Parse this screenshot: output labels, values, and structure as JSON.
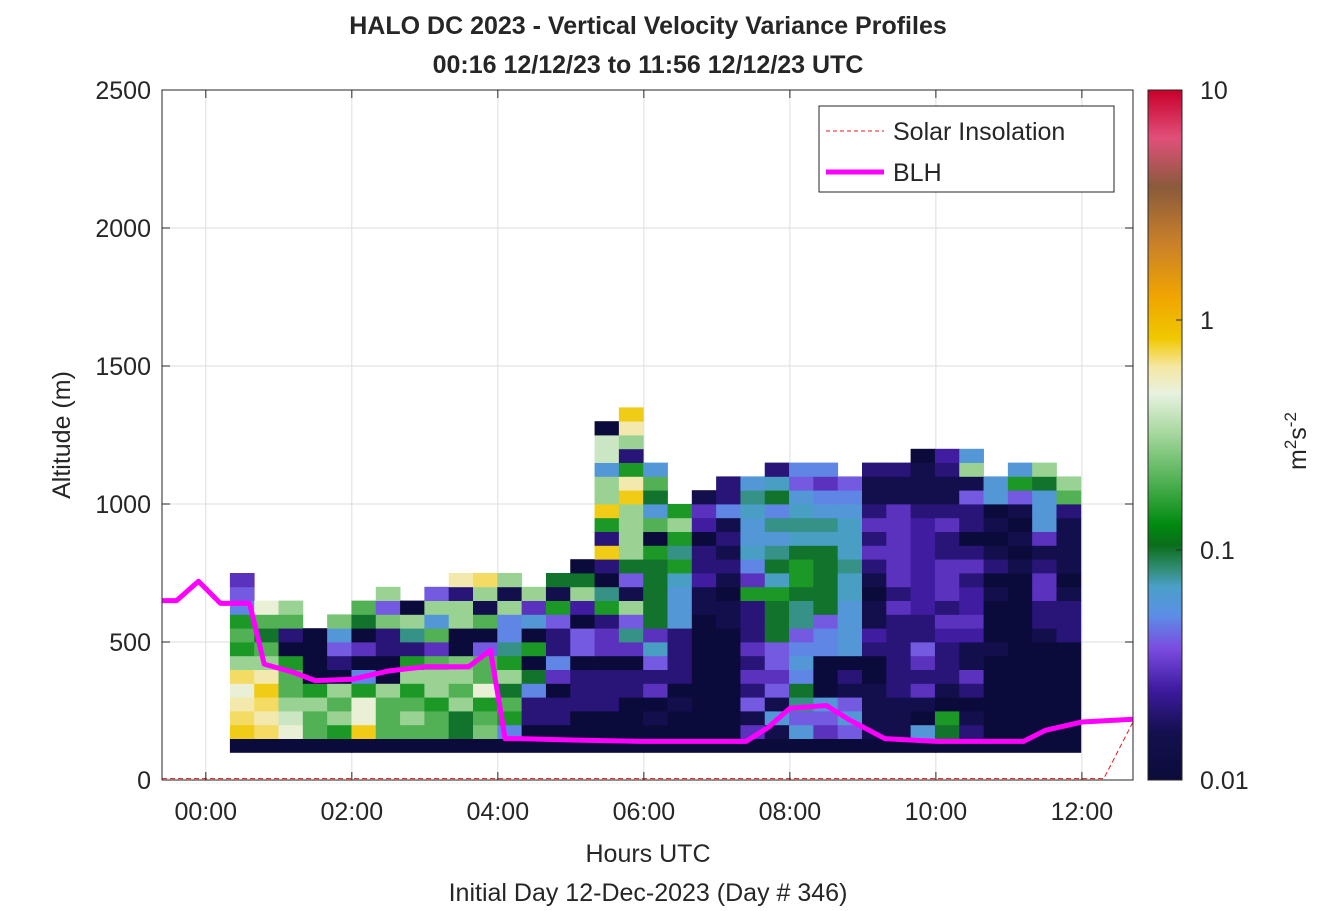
{
  "chart_data": {
    "type": "heatmap",
    "title": "HALO DC 2023 - Vertical Velocity Variance Profiles",
    "subtitle": "00:16 12/12/23 to 11:56 12/12/23  UTC",
    "xlabel": "Hours UTC",
    "ylabel": "Altitude (m)",
    "caption": "Initial Day 12-Dec-2023 (Day # 346)",
    "x_unit": "hours UTC",
    "xlim": [
      -0.6,
      12.7
    ],
    "ylim": [
      0,
      2500
    ],
    "x_ticks": [
      0,
      2,
      4,
      6,
      8,
      10,
      12
    ],
    "x_tick_labels": [
      "00:00",
      "02:00",
      "04:00",
      "06:00",
      "08:00",
      "10:00",
      "12:00"
    ],
    "y_ticks": [
      0,
      500,
      1000,
      1500,
      2000,
      2500
    ],
    "y_tick_labels": [
      "0",
      "500",
      "1000",
      "1500",
      "2000",
      "2500"
    ],
    "grid": true,
    "legend_position": "top-right",
    "colorbar": {
      "label_base": "m",
      "label_sup1": "2",
      "label_mid": "s",
      "label_sup2": "-2",
      "scale": "log",
      "range": [
        0.01,
        10
      ],
      "ticks": [
        0.01,
        0.1,
        1,
        10
      ],
      "tick_labels": [
        "0.01",
        "0.1",
        "1",
        "10"
      ]
    },
    "heatmap": {
      "x_start": 0.33,
      "x_step": 0.333,
      "y_start": 100,
      "y_step": 50,
      "columns": [
        [
          0.01,
          0.8,
          0.7,
          0.6,
          0.5,
          0.7,
          0.3,
          0.15,
          0.2,
          0.15,
          0.05,
          0.04,
          0.03
        ],
        [
          0.01,
          0.7,
          0.6,
          0.7,
          0.8,
          0.6,
          0.3,
          0.2,
          0.1,
          0.2,
          0.5
        ],
        [
          0.01,
          0.5,
          0.4,
          0.3,
          0.2,
          0.2,
          0.15,
          0.01,
          0.02,
          0.2,
          0.3
        ],
        [
          0.01,
          0.2,
          0.2,
          0.3,
          0.15,
          0.01,
          0.01,
          0.01,
          0.01
        ],
        [
          0.01,
          0.15,
          0.3,
          0.2,
          0.3,
          0.01,
          0.02,
          0.04,
          0.06,
          0.25
        ],
        [
          0.01,
          0.8,
          0.5,
          0.5,
          0.15,
          0.05,
          0.01,
          0.03,
          0.01,
          0.1,
          0.2
        ],
        [
          0.01,
          0.2,
          0.2,
          0.2,
          0.3,
          0.01,
          0.01,
          0.02,
          0.02,
          0.25,
          0.04,
          0.3
        ],
        [
          0.01,
          0.2,
          0.3,
          0.2,
          0.15,
          0.3,
          0.15,
          0.02,
          0.08,
          0.3,
          0.01
        ],
        [
          0.01,
          0.2,
          0.2,
          0.15,
          0.3,
          0.3,
          0.2,
          0.03,
          0.2,
          0.06,
          0.3,
          0.04
        ],
        [
          0.01,
          0.1,
          0.1,
          0.3,
          0.2,
          0.3,
          0.25,
          0.01,
          0.01,
          0.3,
          0.3,
          0.02,
          0.6
        ],
        [
          0.01,
          0.25,
          0.2,
          0.15,
          0.5,
          0.2,
          0.2,
          0.04,
          0.01,
          0.2,
          0.015,
          0.3,
          0.7
        ],
        [
          0.01,
          0.05,
          0.15,
          0.2,
          0.1,
          0.3,
          0.15,
          0.08,
          0.05,
          0.05,
          0.3,
          0.015,
          0.3
        ],
        [
          0.01,
          0.01,
          0.02,
          0.02,
          0.05,
          0.1,
          0.01,
          0.15,
          0.01,
          0.06,
          0.03,
          0.3
        ],
        [
          0.01,
          0.01,
          0.02,
          0.02,
          0.01,
          0.03,
          0.05,
          0.02,
          0.02,
          0.04,
          0.15,
          0.015,
          0.1
        ],
        [
          0.01,
          0.01,
          0.01,
          0.02,
          0.02,
          0.02,
          0.01,
          0.04,
          0.04,
          0.01,
          0.025,
          0.3,
          0.1,
          0.01
        ],
        [
          0.01,
          0.01,
          0.01,
          0.02,
          0.02,
          0.02,
          0.01,
          0.03,
          0.03,
          0.02,
          0.15,
          0.08,
          0.01,
          0.02,
          0.8,
          0.02,
          0.15,
          0.8,
          0.3,
          0.3,
          0.06,
          0.4,
          0.4,
          0.01
        ],
        [
          0.01,
          0.01,
          0.01,
          0.01,
          0.02,
          0.02,
          0.01,
          0.03,
          0.08,
          0.04,
          0.3,
          0.015,
          0.04,
          0.1,
          0.3,
          0.3,
          0.3,
          0.3,
          0.8,
          0.6,
          0.15,
          0.02,
          0.3,
          0.6,
          0.8
        ],
        [
          0.01,
          0.01,
          0.015,
          0.01,
          0.03,
          0.02,
          0.04,
          0.07,
          0.03,
          0.1,
          0.1,
          0.1,
          0.1,
          0.1,
          0.15,
          0.01,
          0.2,
          0.06,
          0.1,
          0.2,
          0.06
        ],
        [
          0.01,
          0.01,
          0.01,
          0.015,
          0.01,
          0.02,
          0.02,
          0.02,
          0.02,
          0.06,
          0.06,
          0.06,
          0.07,
          0.15,
          0.08,
          0.15,
          0.3,
          0.15
        ],
        [
          0.01,
          0.01,
          0.01,
          0.01,
          0.01,
          0.01,
          0.01,
          0.01,
          0.01,
          0.01,
          0.015,
          0.015,
          0.025,
          0.02,
          0.02,
          0.01,
          0.025,
          0.03,
          0.015
        ],
        [
          0.01,
          0.01,
          0.01,
          0.01,
          0.01,
          0.01,
          0.01,
          0.01,
          0.01,
          0.015,
          0.015,
          0.01,
          0.015,
          0.02,
          0.015,
          0.02,
          0.015,
          0.05,
          0.02,
          0.02
        ],
        [
          0.01,
          0.03,
          0.015,
          0.04,
          0.02,
          0.03,
          0.02,
          0.03,
          0.02,
          0.02,
          0.02,
          0.15,
          0.03,
          0.05,
          0.07,
          0.06,
          0.06,
          0.07,
          0.08,
          0.06
        ],
        [
          0.01,
          0.015,
          0.06,
          0.015,
          0.04,
          0.03,
          0.04,
          0.04,
          0.1,
          0.1,
          0.1,
          0.15,
          0.07,
          0.1,
          0.08,
          0.06,
          0.08,
          0.05,
          0.1,
          0.07,
          0.02
        ],
        [
          0.01,
          0.06,
          0.04,
          0.08,
          0.1,
          0.05,
          0.06,
          0.05,
          0.04,
          0.08,
          0.08,
          0.1,
          0.15,
          0.15,
          0.1,
          0.07,
          0.08,
          0.07,
          0.06,
          0.04,
          0.05
        ],
        [
          0.01,
          0.03,
          0.04,
          0.06,
          0.01,
          0.01,
          0.01,
          0.05,
          0.05,
          0.04,
          0.1,
          0.1,
          0.1,
          0.1,
          0.1,
          0.07,
          0.08,
          0.06,
          0.05,
          0.03,
          0.05
        ],
        [
          0.01,
          0.04,
          0.06,
          0.04,
          0.015,
          0.02,
          0.01,
          0.06,
          0.06,
          0.06,
          0.06,
          0.07,
          0.07,
          0.08,
          0.07,
          0.07,
          0.07,
          0.06,
          0.05,
          0.04
        ],
        [
          0.01,
          0.015,
          0.015,
          0.015,
          0.015,
          0.01,
          0.01,
          0.02,
          0.025,
          0.015,
          0.015,
          0.01,
          0.015,
          0.02,
          0.03,
          0.02,
          0.03,
          0.02,
          0.015,
          0.015,
          0.02
        ],
        [
          0.01,
          0.015,
          0.015,
          0.015,
          0.02,
          0.02,
          0.02,
          0.02,
          0.02,
          0.02,
          0.03,
          0.02,
          0.03,
          0.03,
          0.03,
          0.03,
          0.03,
          0.03,
          0.015,
          0.015,
          0.02
        ],
        [
          0.01,
          0.06,
          0.01,
          0.015,
          0.03,
          0.02,
          0.03,
          0.04,
          0.02,
          0.02,
          0.025,
          0.025,
          0.025,
          0.025,
          0.025,
          0.025,
          0.025,
          0.02,
          0.015,
          0.015,
          0.015,
          0.01
        ],
        [
          0.01,
          0.1,
          0.15,
          0.01,
          0.015,
          0.02,
          0.02,
          0.02,
          0.025,
          0.03,
          0.02,
          0.03,
          0.03,
          0.03,
          0.02,
          0.02,
          0.03,
          0.02,
          0.015,
          0.015,
          0.02,
          0.025
        ],
        [
          0.01,
          0.02,
          0.015,
          0.01,
          0.02,
          0.03,
          0.015,
          0.015,
          0.025,
          0.03,
          0.025,
          0.025,
          0.02,
          0.03,
          0.02,
          0.01,
          0.02,
          0.02,
          0.04,
          0.015,
          0.3,
          0.06
        ],
        [
          0.01,
          0.01,
          0.01,
          0.01,
          0.01,
          0.01,
          0.01,
          0.015,
          0.01,
          0.01,
          0.01,
          0.015,
          0.01,
          0.02,
          0.015,
          0.01,
          0.015,
          0.01,
          0.06,
          0.06
        ],
        [
          0.01,
          0.01,
          0.01,
          0.01,
          0.01,
          0.01,
          0.01,
          0.01,
          0.01,
          0.01,
          0.01,
          0.01,
          0.01,
          0.015,
          0.01,
          0.015,
          0.01,
          0.015,
          0.04,
          0.15,
          0.06
        ],
        [
          0.01,
          0.01,
          0.01,
          0.01,
          0.01,
          0.01,
          0.01,
          0.01,
          0.015,
          0.02,
          0.02,
          0.03,
          0.03,
          0.02,
          0.015,
          0.03,
          0.06,
          0.06,
          0.06,
          0.1,
          0.3
        ],
        [
          0.01,
          0.01,
          0.01,
          0.01,
          0.01,
          0.01,
          0.01,
          0.01,
          0.02,
          0.02,
          0.02,
          0.015,
          0.01,
          0.015,
          0.015,
          0.015,
          0.015,
          0.02,
          0.2,
          0.3
        ]
      ]
    },
    "series": [
      {
        "name": "Solar Insolation",
        "color": "#e41a1c",
        "style": "dashed",
        "x": [
          -0.6,
          12.3,
          12.7
        ],
        "y": [
          5,
          5,
          210
        ]
      },
      {
        "name": "BLH",
        "color": "#ff00ff",
        "style": "solid",
        "x": [
          -0.6,
          -0.4,
          -0.1,
          0.2,
          0.6,
          0.8,
          1.2,
          1.5,
          2.0,
          2.5,
          3.0,
          3.6,
          3.9,
          4.1,
          4.3,
          5.0,
          6.0,
          7.0,
          7.4,
          7.7,
          8.0,
          8.5,
          8.8,
          9.3,
          10.0,
          11.0,
          11.2,
          11.5,
          12.0,
          12.7
        ],
        "y": [
          650,
          650,
          720,
          640,
          640,
          420,
          390,
          360,
          365,
          395,
          410,
          410,
          470,
          150,
          150,
          145,
          140,
          140,
          140,
          190,
          260,
          270,
          220,
          150,
          140,
          140,
          140,
          180,
          210,
          220
        ]
      }
    ]
  }
}
